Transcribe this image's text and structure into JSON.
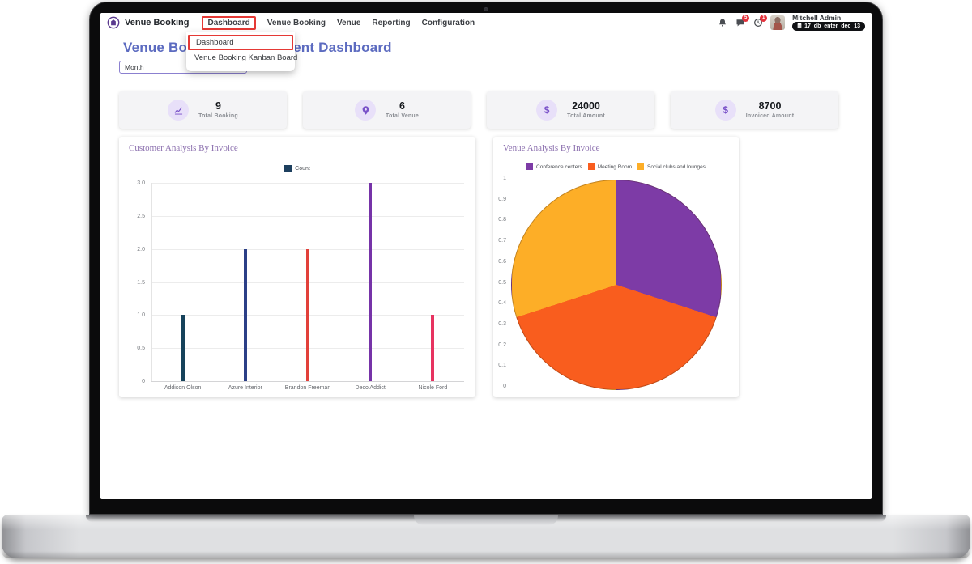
{
  "navbar": {
    "brand": "Venue Booking",
    "menu": [
      "Dashboard",
      "Venue Booking",
      "Venue",
      "Reporting",
      "Configuration"
    ],
    "systray": {
      "user_name": "Mitchell Admin",
      "database": "17_db_enter_dec_13",
      "badges": {
        "messages": "5",
        "activities": "1"
      }
    }
  },
  "dropdown": {
    "items": [
      "Dashboard",
      "Venue Booking Kanban Board"
    ]
  },
  "page": {
    "title": "Venue Booking Management Dashboard"
  },
  "filter": {
    "value": "Month"
  },
  "kpis": [
    {
      "icon": "chart-line-icon",
      "value": "9",
      "label": "Total Booking"
    },
    {
      "icon": "map-pin-icon",
      "value": "6",
      "label": "Total Venue"
    },
    {
      "icon": "dollar-icon",
      "value": "24000",
      "label": "Total Amount"
    },
    {
      "icon": "dollar-icon",
      "value": "8700",
      "label": "Invoiced Amount"
    }
  ],
  "icons": {
    "dollar": "$",
    "caret": "▾"
  },
  "colors": {
    "accent_purple": "#7a52c9",
    "title_blue": "#5c6bc0",
    "chart_title_purple": "#8b6fae",
    "highlight_red": "#e53935"
  },
  "chart_data": [
    {
      "type": "bar",
      "title": "Customer Analysis By Invoice",
      "legend": [
        {
          "label": "Count",
          "color": "#1d3f5e"
        }
      ],
      "legend_position": "top",
      "categories": [
        "Addison Olson",
        "Azure Interior",
        "Brandon Freeman",
        "Deco Addict",
        "Nicole Ford"
      ],
      "values": [
        1,
        2,
        2,
        3,
        1
      ],
      "bar_colors": [
        "#16425b",
        "#2b3f87",
        "#e2403a",
        "#7633a8",
        "#e73360"
      ],
      "ylim": [
        0,
        3
      ],
      "yticks": [
        "3.0",
        "2.5",
        "2.0",
        "1.5",
        "1.0",
        "0.5",
        "0"
      ],
      "grid": true,
      "xlabel": "",
      "ylabel": ""
    },
    {
      "type": "pie",
      "title": "Venue Analysis By Invoice",
      "labels": [
        "Conference centers",
        "Meeting Room",
        "Social clubs and lounges"
      ],
      "values_pct": [
        30,
        40,
        30
      ],
      "colors": [
        "#7d3ba6",
        "#f95d1e",
        "#fdae27"
      ],
      "legend_position": "top",
      "axis_ticks": [
        "1",
        "0.9",
        "0.8",
        "0.7",
        "0.6",
        "0.5",
        "0.4",
        "0.3",
        "0.2",
        "0.1",
        "0"
      ]
    }
  ]
}
